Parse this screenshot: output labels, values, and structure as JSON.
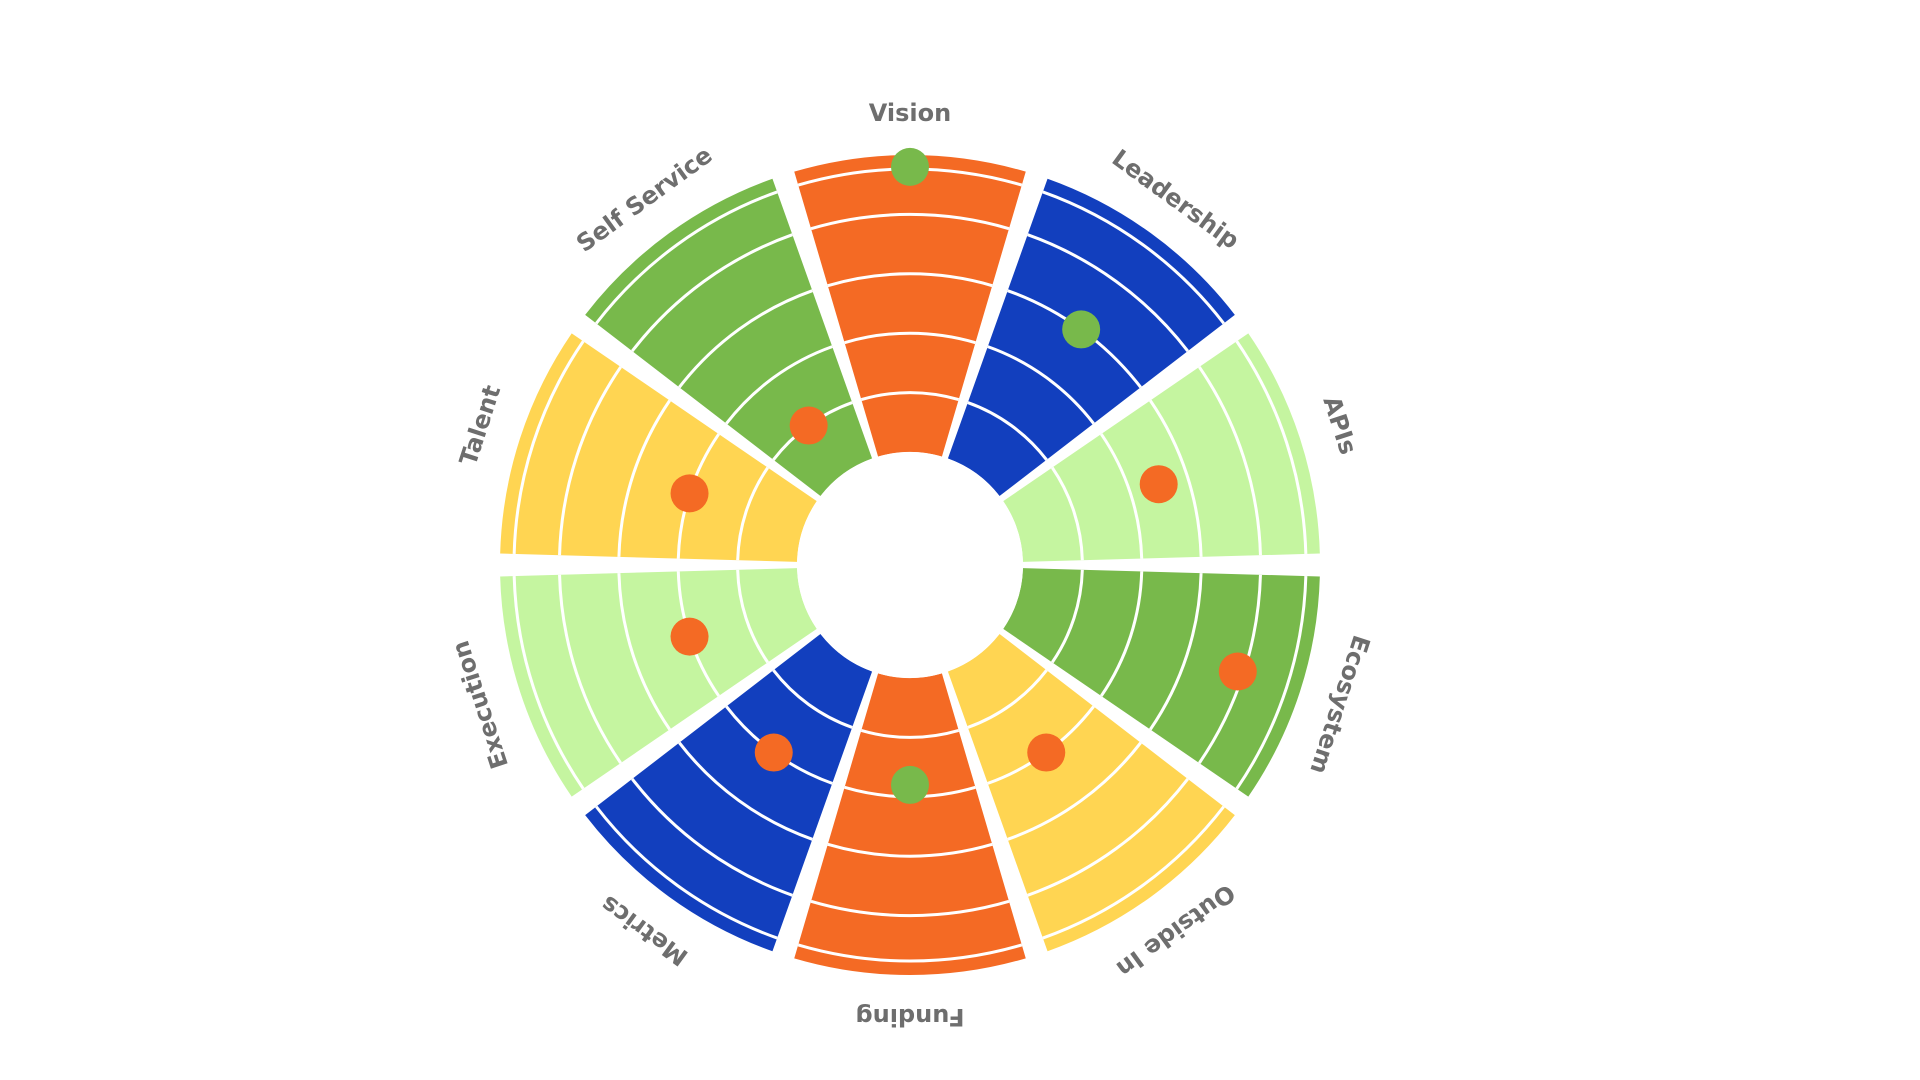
{
  "segments": [
    {
      "label": "Vision",
      "color": "#f46a24",
      "dot_level": 4.8,
      "dot_color": "#78b94b"
    },
    {
      "label": "Leadership",
      "color": "#123fbe",
      "dot_level": 3.0,
      "dot_color": "#78b94b"
    },
    {
      "label": "APIs",
      "color": "#c5f5a0",
      "dot_level": 2.5,
      "dot_color": "#f46a24"
    },
    {
      "label": "Ecosystem",
      "color": "#78b94b",
      "dot_level": 3.9,
      "dot_color": "#f46a24"
    },
    {
      "label": "Outside In",
      "color": "#ffd552",
      "dot_level": 2.0,
      "dot_color": "#f46a24"
    },
    {
      "label": "Funding",
      "color": "#f46a24",
      "dot_level": 1.8,
      "dot_color": "#78b94b"
    },
    {
      "label": "Metrics",
      "color": "#123fbe",
      "dot_level": 2.0,
      "dot_color": "#f46a24"
    },
    {
      "label": "Execution",
      "color": "#c5f5a0",
      "dot_level": 2.0,
      "dot_color": "#f46a24"
    },
    {
      "label": "Talent",
      "color": "#ffd552",
      "dot_level": 2.0,
      "dot_color": "#f46a24"
    },
    {
      "label": "Self Service",
      "color": "#78b94b",
      "dot_level": 1.0,
      "dot_color": "#f46a24"
    }
  ],
  "ring_count": 5,
  "label_color": "#6e6e6e",
  "ring_line_color": "#ffffff"
}
